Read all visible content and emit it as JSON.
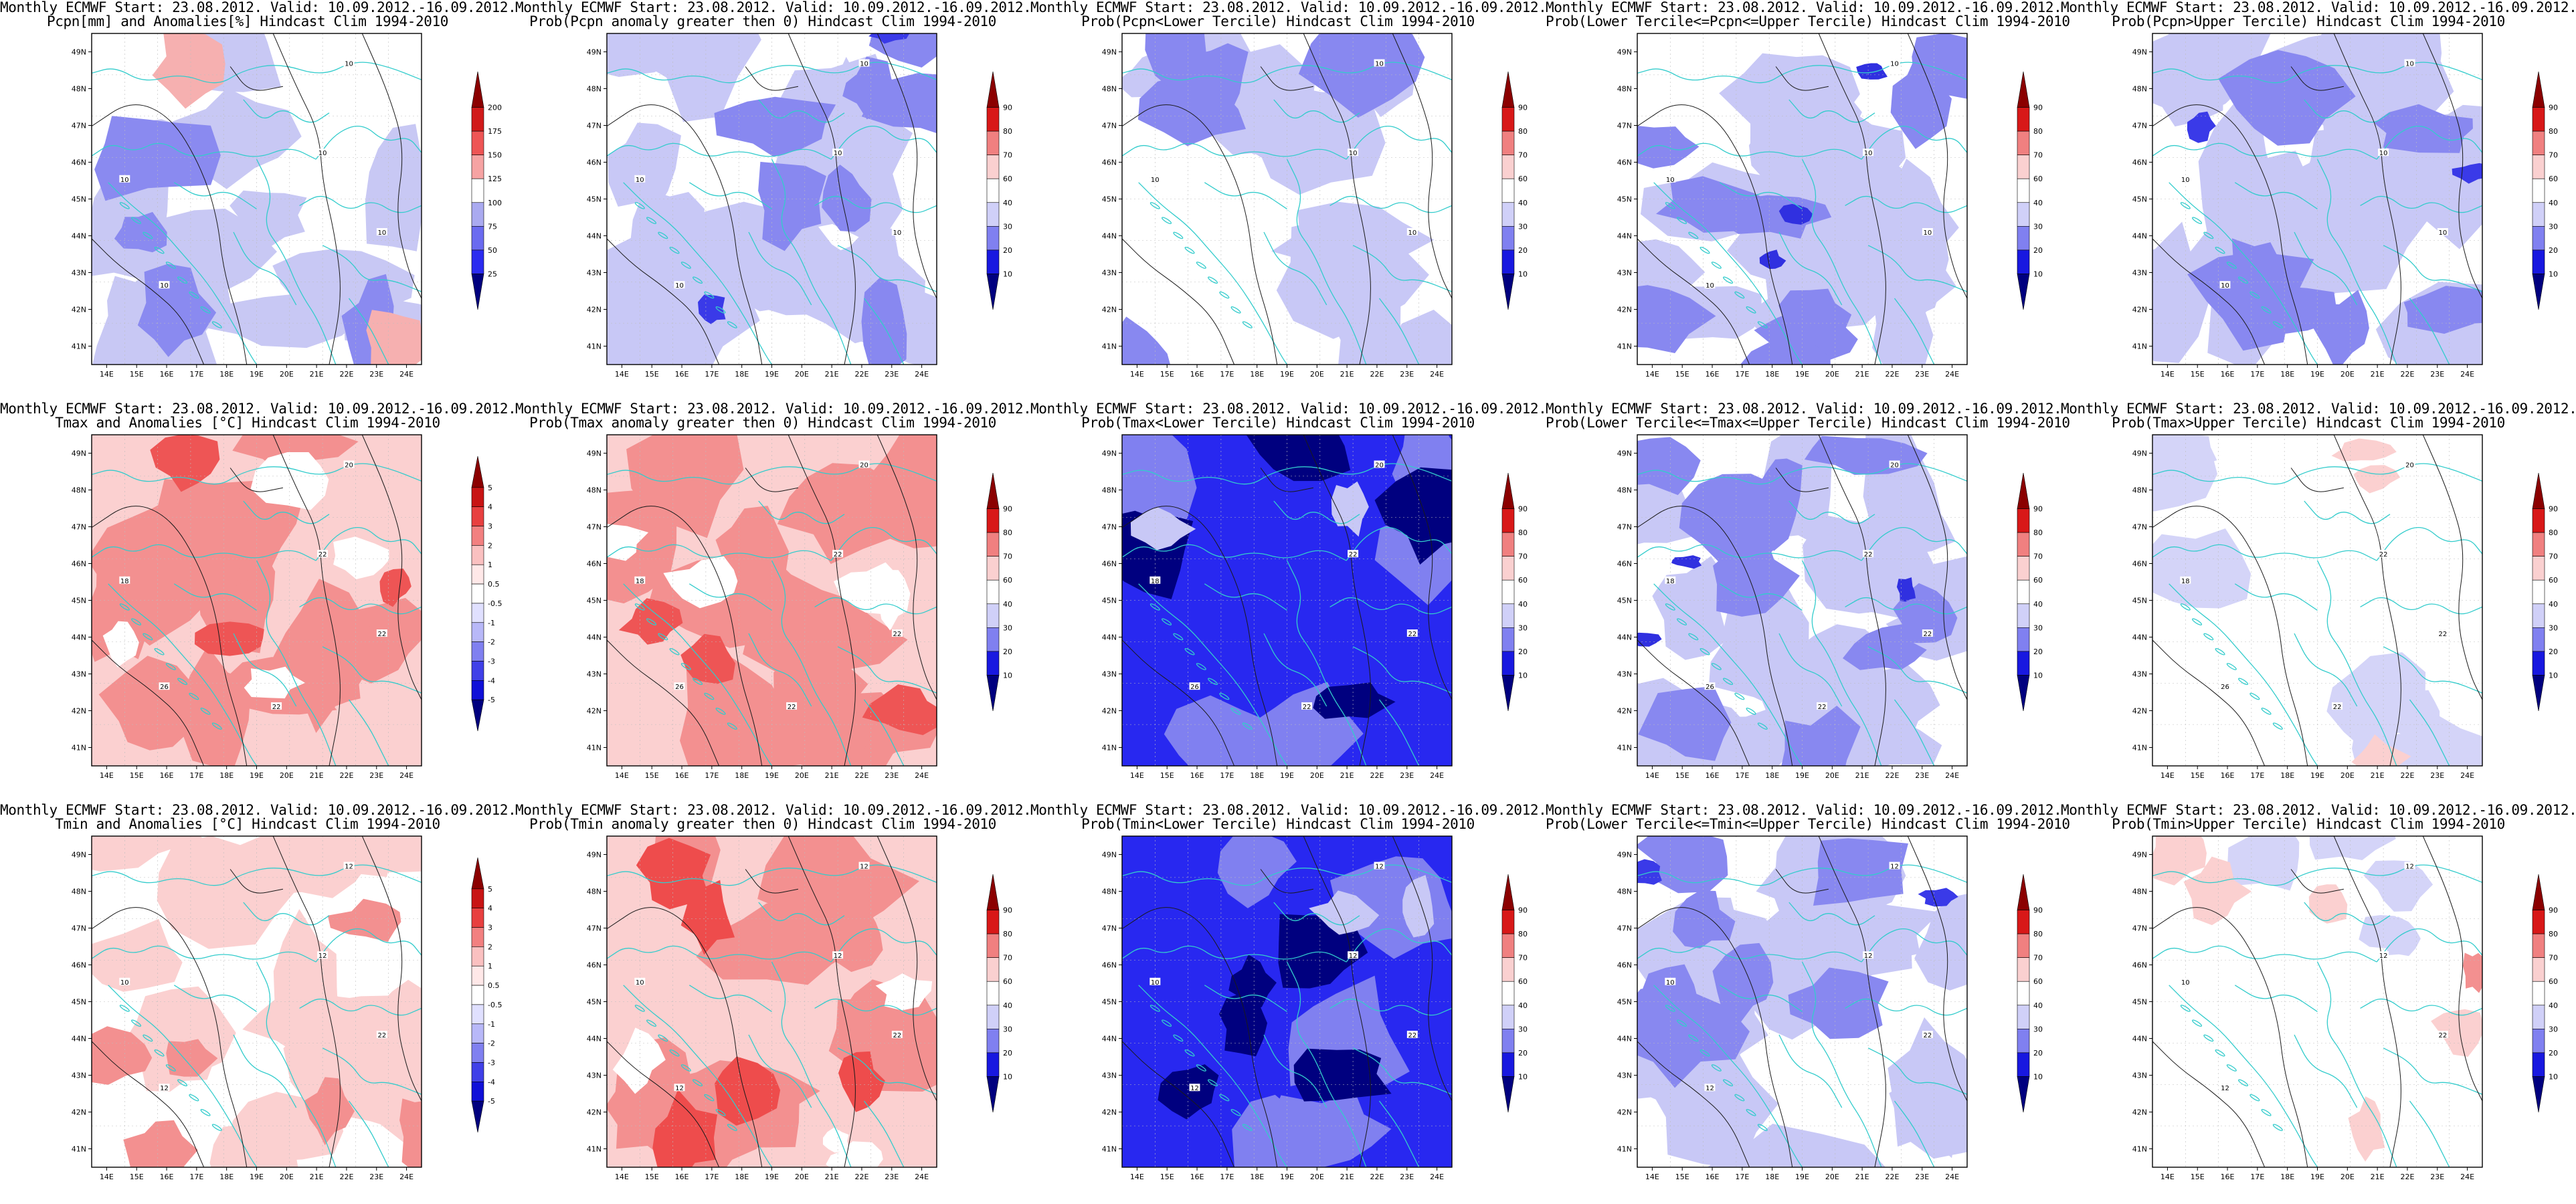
{
  "common": {
    "lat_ticks": [
      "41N",
      "42N",
      "43N",
      "44N",
      "45N",
      "46N",
      "47N",
      "48N",
      "49N"
    ],
    "lon_ticks": [
      "14E",
      "15E",
      "16E",
      "17E",
      "18E",
      "19E",
      "20E",
      "21E",
      "22E",
      "23E",
      "24E"
    ]
  },
  "rows": [
    {
      "name": "precipitation",
      "panels": [
        {
          "title1": "Monthly ECMWF Start: 23.08.2012. Valid: 10.09.2012.-16.09.2012.",
          "title2": "Pcpn[mm] and Anomalies[%] Hindcast Clim 1994-2010",
          "colorbar_labels": [
            "200",
            "175",
            "150",
            "125",
            "100",
            "75",
            "50",
            "25"
          ],
          "palette": "anomaly",
          "fill_scheme": "precip_anom",
          "contour_labels": [
            "10",
            "10",
            "10",
            "10",
            "10"
          ]
        },
        {
          "title1": "Monthly ECMWF Start: 23.08.2012. Valid: 10.09.2012.-16.09.2012.",
          "title2": "Prob(Pcpn anomaly greater then 0) Hindcast Clim 1994-2010",
          "colorbar_labels": [
            "90",
            "80",
            "70",
            "60",
            "40",
            "30",
            "20",
            "10"
          ],
          "palette": "prob",
          "fill_scheme": "blue_mid",
          "contour_labels": [
            "10",
            "10",
            "10",
            "10",
            "10"
          ]
        },
        {
          "title1": "Monthly ECMWF Start: 23.08.2012. Valid: 10.09.2012.-16.09.2012.",
          "title2": "Prob(Pcpn<Lower Tercile) Hindcast Clim 1994-2010",
          "colorbar_labels": [
            "90",
            "80",
            "70",
            "60",
            "40",
            "30",
            "20",
            "10"
          ],
          "palette": "prob",
          "fill_scheme": "blue_light",
          "contour_labels": [
            "10",
            "10",
            "10",
            "10"
          ]
        },
        {
          "title1": "Monthly ECMWF Start: 23.08.2012. Valid: 10.09.2012.-16.09.2012.",
          "title2": "Prob(Lower Tercile<=Pcpn<=Upper Tercile) Hindcast Clim 1994-2010",
          "colorbar_labels": [
            "90",
            "80",
            "70",
            "60",
            "40",
            "30",
            "20",
            "10"
          ],
          "palette": "prob",
          "fill_scheme": "blue_mix",
          "contour_labels": [
            "10",
            "10",
            "10",
            "10",
            "10"
          ]
        },
        {
          "title1": "Monthly ECMWF Start: 23.08.2012. Valid: 10.09.2012.-16.09.2012.",
          "title2": "Prob(Pcpn>Upper Tercile) Hindcast Clim 1994-2010",
          "colorbar_labels": [
            "90",
            "80",
            "70",
            "60",
            "40",
            "30",
            "20",
            "10"
          ],
          "palette": "prob",
          "fill_scheme": "blue_mid",
          "contour_labels": [
            "10",
            "10",
            "10",
            "10",
            "10"
          ]
        }
      ]
    },
    {
      "name": "tmax",
      "panels": [
        {
          "title1": "Monthly ECMWF Start: 23.08.2012. Valid: 10.09.2012.-16.09.2012.",
          "title2": "Tmax and Anomalies [°C] Hindcast Clim 1994-2010",
          "colorbar_labels": [
            "5",
            "4",
            "3",
            "2",
            "1",
            "0.5",
            "-0.5",
            "-1",
            "-2",
            "-3",
            "-4",
            "-5"
          ],
          "palette": "temp",
          "fill_scheme": "red_mid",
          "contour_labels": [
            "20",
            "22",
            "18",
            "22",
            "26",
            "22"
          ]
        },
        {
          "title1": "Monthly ECMWF Start: 23.08.2012. Valid: 10.09.2012.-16.09.2012.",
          "title2": "Prob(Tmax anomaly greater then 0) Hindcast Clim 1994-2010",
          "colorbar_labels": [
            "90",
            "80",
            "70",
            "60",
            "40",
            "30",
            "20",
            "10"
          ],
          "palette": "prob",
          "fill_scheme": "red_mid",
          "contour_labels": [
            "20",
            "22",
            "18",
            "22",
            "26",
            "22"
          ]
        },
        {
          "title1": "Monthly ECMWF Start: 23.08.2012. Valid: 10.09.2012.-16.09.2012.",
          "title2": "Prob(Tmax<Lower Tercile) Hindcast Clim 1994-2010",
          "colorbar_labels": [
            "90",
            "80",
            "70",
            "60",
            "40",
            "30",
            "20",
            "10"
          ],
          "palette": "prob",
          "fill_scheme": "blue_dark",
          "contour_labels": [
            "20",
            "22",
            "18",
            "22",
            "26",
            "22"
          ]
        },
        {
          "title1": "Monthly ECMWF Start: 23.08.2012. Valid: 10.09.2012.-16.09.2012.",
          "title2": "Prob(Lower Tercile<=Tmax<=Upper Tercile) Hindcast Clim 1994-2010",
          "colorbar_labels": [
            "90",
            "80",
            "70",
            "60",
            "40",
            "30",
            "20",
            "10"
          ],
          "palette": "prob",
          "fill_scheme": "blue_mix",
          "contour_labels": [
            "20",
            "22",
            "18",
            "22",
            "26",
            "22"
          ]
        },
        {
          "title1": "Monthly ECMWF Start: 23.08.2012. Valid: 10.09.2012.-16.09.2012.",
          "title2": "Prob(Tmax>Upper Tercile) Hindcast Clim 1994-2010",
          "colorbar_labels": [
            "90",
            "80",
            "70",
            "60",
            "40",
            "30",
            "20",
            "10"
          ],
          "palette": "prob",
          "fill_scheme": "sparse",
          "contour_labels": [
            "20",
            "22",
            "18",
            "22",
            "26",
            "22"
          ]
        }
      ]
    },
    {
      "name": "tmin",
      "panels": [
        {
          "title1": "Monthly ECMWF Start: 23.08.2012. Valid: 10.09.2012.-16.09.2012.",
          "title2": "Tmin and Anomalies [°C] Hindcast Clim 1994-2010",
          "colorbar_labels": [
            "5",
            "4",
            "3",
            "2",
            "1",
            "0.5",
            "-0.5",
            "-1",
            "-2",
            "-3",
            "-4",
            "-5"
          ],
          "palette": "temp",
          "fill_scheme": "red_light",
          "contour_labels": [
            "12",
            "12",
            "10",
            "22",
            "12"
          ]
        },
        {
          "title1": "Monthly ECMWF Start: 23.08.2012. Valid: 10.09.2012.-16.09.2012.",
          "title2": "Prob(Tmin anomaly greater then 0) Hindcast Clim 1994-2010",
          "colorbar_labels": [
            "90",
            "80",
            "70",
            "60",
            "40",
            "30",
            "20",
            "10"
          ],
          "palette": "prob",
          "fill_scheme": "red_strong",
          "contour_labels": [
            "12",
            "12",
            "10",
            "22",
            "12"
          ]
        },
        {
          "title1": "Monthly ECMWF Start: 23.08.2012. Valid: 10.09.2012.-16.09.2012.",
          "title2": "Prob(Tmin<Lower Tercile) Hindcast Clim 1994-2010",
          "colorbar_labels": [
            "90",
            "80",
            "70",
            "60",
            "40",
            "30",
            "20",
            "10"
          ],
          "palette": "prob",
          "fill_scheme": "blue_dark",
          "contour_labels": [
            "12",
            "12",
            "10",
            "22",
            "12"
          ]
        },
        {
          "title1": "Monthly ECMWF Start: 23.08.2012. Valid: 10.09.2012.-16.09.2012.",
          "title2": "Prob(Lower Tercile<=Tmin<=Upper Tercile) Hindcast Clim 1994-2010",
          "colorbar_labels": [
            "90",
            "80",
            "70",
            "60",
            "40",
            "30",
            "20",
            "10"
          ],
          "palette": "prob",
          "fill_scheme": "blue_mid",
          "contour_labels": [
            "12",
            "12",
            "10",
            "22",
            "12"
          ]
        },
        {
          "title1": "Monthly ECMWF Start: 23.08.2012. Valid: 10.09.2012.-16.09.2012.",
          "title2": "Prob(Tmin>Upper Tercile) Hindcast Clim 1994-2010",
          "colorbar_labels": [
            "90",
            "80",
            "70",
            "60",
            "40",
            "30",
            "20",
            "10"
          ],
          "palette": "prob",
          "fill_scheme": "sparse_red",
          "contour_labels": [
            "12",
            "12",
            "10",
            "22",
            "12"
          ]
        }
      ]
    }
  ],
  "colors": {
    "coast": "#33cccc",
    "contour": "#1a1a1a",
    "anomaly_bar": [
      "#8b0000",
      "#d11a1a",
      "#ee5555",
      "#f6a3a3",
      "#ffffff",
      "#aaaaf0",
      "#6b6bf0",
      "#2b2bf0",
      "#00007f"
    ],
    "prob_bar": [
      "#8b0000",
      "#d81818",
      "#f08080",
      "#fad0d0",
      "#ffffff",
      "#d0d0f8",
      "#8080f0",
      "#1818e0",
      "#00007f"
    ],
    "temp_bar": [
      "#8b0000",
      "#c81414",
      "#e84040",
      "#f28080",
      "#fac0c0",
      "#ffe8e8",
      "#ffffff",
      "#e0e0ff",
      "#b8b8f8",
      "#8080f0",
      "#4040e8",
      "#1010d8",
      "#00007f"
    ]
  }
}
